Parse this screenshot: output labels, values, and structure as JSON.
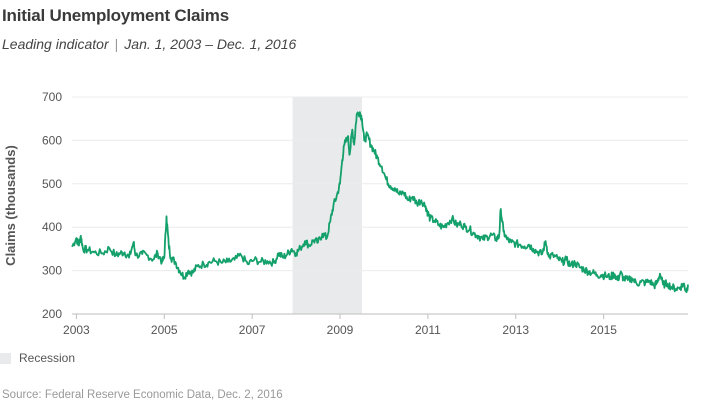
{
  "title": "Initial Unemployment Claims",
  "subtitle": {
    "text": "Leading indicator",
    "separator": "|",
    "range": "Jan. 1, 2003 – Dec. 1, 2016"
  },
  "legend": {
    "recession_label": "Recession",
    "recession_color": "#e9eaec"
  },
  "source": "Source: Federal Reserve Economic Data, Dec. 2, 2016",
  "chart_data": {
    "type": "line",
    "title": "Initial Unemployment Claims",
    "ylabel": "Claims (thousands)",
    "xlabel": "",
    "ylim": [
      200,
      700
    ],
    "xlim": [
      2002.9,
      2016.92
    ],
    "yticks": [
      200,
      300,
      400,
      500,
      600,
      700
    ],
    "xticks": [
      2003,
      2005,
      2007,
      2009,
      2011,
      2013,
      2015
    ],
    "grid": true,
    "line_color": "#13a06a",
    "recession": {
      "start": 2007.92,
      "end": 2009.5
    },
    "series": [
      {
        "points": [
          [
            2002.9,
            355
          ],
          [
            2003.0,
            375
          ],
          [
            2003.05,
            358
          ],
          [
            2003.1,
            380
          ],
          [
            2003.15,
            350
          ],
          [
            2003.25,
            348
          ],
          [
            2003.4,
            342
          ],
          [
            2003.6,
            340
          ],
          [
            2003.75,
            352
          ],
          [
            2003.9,
            335
          ],
          [
            2004.0,
            340
          ],
          [
            2004.1,
            342
          ],
          [
            2004.2,
            330
          ],
          [
            2004.3,
            365
          ],
          [
            2004.35,
            335
          ],
          [
            2004.5,
            338
          ],
          [
            2004.6,
            336
          ],
          [
            2004.75,
            326
          ],
          [
            2004.85,
            340
          ],
          [
            2004.95,
            320
          ],
          [
            2005.0,
            330
          ],
          [
            2005.05,
            425
          ],
          [
            2005.1,
            360
          ],
          [
            2005.15,
            330
          ],
          [
            2005.25,
            320
          ],
          [
            2005.35,
            300
          ],
          [
            2005.45,
            285
          ],
          [
            2005.55,
            300
          ],
          [
            2005.65,
            295
          ],
          [
            2005.75,
            310
          ],
          [
            2005.9,
            315
          ],
          [
            2006.0,
            318
          ],
          [
            2006.15,
            322
          ],
          [
            2006.3,
            318
          ],
          [
            2006.45,
            320
          ],
          [
            2006.6,
            325
          ],
          [
            2006.75,
            335
          ],
          [
            2006.9,
            315
          ],
          [
            2007.05,
            325
          ],
          [
            2007.2,
            320
          ],
          [
            2007.35,
            322
          ],
          [
            2007.5,
            318
          ],
          [
            2007.6,
            340
          ],
          [
            2007.7,
            330
          ],
          [
            2007.8,
            338
          ],
          [
            2007.9,
            350
          ],
          [
            2008.0,
            340
          ],
          [
            2008.1,
            352
          ],
          [
            2008.2,
            368
          ],
          [
            2008.3,
            358
          ],
          [
            2008.4,
            370
          ],
          [
            2008.5,
            365
          ],
          [
            2008.6,
            385
          ],
          [
            2008.7,
            375
          ],
          [
            2008.78,
            415
          ],
          [
            2008.85,
            450
          ],
          [
            2008.92,
            470
          ],
          [
            2009.0,
            500
          ],
          [
            2009.05,
            555
          ],
          [
            2009.1,
            590
          ],
          [
            2009.18,
            610
          ],
          [
            2009.22,
            568
          ],
          [
            2009.28,
            625
          ],
          [
            2009.32,
            590
          ],
          [
            2009.38,
            660
          ],
          [
            2009.45,
            665
          ],
          [
            2009.5,
            650
          ],
          [
            2009.55,
            600
          ],
          [
            2009.62,
            612
          ],
          [
            2009.7,
            590
          ],
          [
            2009.78,
            575
          ],
          [
            2009.85,
            560
          ],
          [
            2009.95,
            540
          ],
          [
            2010.05,
            510
          ],
          [
            2010.15,
            495
          ],
          [
            2010.25,
            490
          ],
          [
            2010.35,
            475
          ],
          [
            2010.45,
            480
          ],
          [
            2010.55,
            462
          ],
          [
            2010.65,
            470
          ],
          [
            2010.75,
            455
          ],
          [
            2010.85,
            462
          ],
          [
            2010.95,
            448
          ],
          [
            2011.0,
            432
          ],
          [
            2011.05,
            420
          ],
          [
            2011.15,
            415
          ],
          [
            2011.25,
            405
          ],
          [
            2011.35,
            400
          ],
          [
            2011.45,
            410
          ],
          [
            2011.55,
            420
          ],
          [
            2011.65,
            405
          ],
          [
            2011.75,
            408
          ],
          [
            2011.85,
            400
          ],
          [
            2011.95,
            395
          ],
          [
            2012.05,
            385
          ],
          [
            2012.15,
            380
          ],
          [
            2012.25,
            372
          ],
          [
            2012.35,
            378
          ],
          [
            2012.45,
            382
          ],
          [
            2012.55,
            373
          ],
          [
            2012.62,
            378
          ],
          [
            2012.66,
            442
          ],
          [
            2012.72,
            390
          ],
          [
            2012.8,
            372
          ],
          [
            2012.9,
            365
          ],
          [
            2013.0,
            362
          ],
          [
            2013.1,
            360
          ],
          [
            2013.2,
            356
          ],
          [
            2013.3,
            360
          ],
          [
            2013.4,
            350
          ],
          [
            2013.5,
            343
          ],
          [
            2013.6,
            338
          ],
          [
            2013.68,
            368
          ],
          [
            2013.75,
            332
          ],
          [
            2013.85,
            335
          ],
          [
            2013.95,
            328
          ],
          [
            2014.05,
            320
          ],
          [
            2014.15,
            325
          ],
          [
            2014.25,
            312
          ],
          [
            2014.35,
            318
          ],
          [
            2014.45,
            308
          ],
          [
            2014.55,
            303
          ],
          [
            2014.65,
            298
          ],
          [
            2014.75,
            295
          ],
          [
            2014.85,
            290
          ],
          [
            2014.95,
            290
          ],
          [
            2015.05,
            288
          ],
          [
            2015.15,
            285
          ],
          [
            2015.25,
            292
          ],
          [
            2015.32,
            278
          ],
          [
            2015.38,
            295
          ],
          [
            2015.45,
            282
          ],
          [
            2015.55,
            278
          ],
          [
            2015.65,
            282
          ],
          [
            2015.75,
            270
          ],
          [
            2015.85,
            274
          ],
          [
            2015.95,
            272
          ],
          [
            2016.05,
            276
          ],
          [
            2016.15,
            265
          ],
          [
            2016.22,
            272
          ],
          [
            2016.28,
            293
          ],
          [
            2016.35,
            268
          ],
          [
            2016.45,
            270
          ],
          [
            2016.55,
            262
          ],
          [
            2016.65,
            258
          ],
          [
            2016.75,
            262
          ],
          [
            2016.82,
            270
          ],
          [
            2016.88,
            252
          ],
          [
            2016.92,
            268
          ]
        ]
      }
    ]
  }
}
